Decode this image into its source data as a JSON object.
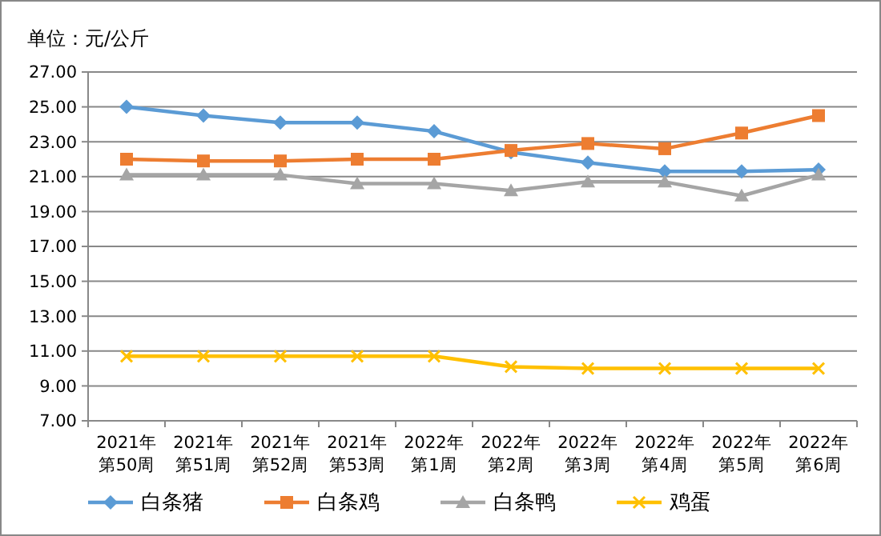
{
  "chart_data": {
    "type": "line",
    "title": "单位：元/公斤",
    "categories": [
      "2021年第50周",
      "2021年第51周",
      "2021年第52周",
      "2021年第53周",
      "2022年第1周",
      "2022年第2周",
      "2022年第3周",
      "2022年第4周",
      "2022年第5周",
      "2022年第6周"
    ],
    "series": [
      {
        "name": "白条猪",
        "color": "#5b9bd5",
        "marker": "diamond",
        "values": [
          25.0,
          24.5,
          24.1,
          24.1,
          23.6,
          22.4,
          21.8,
          21.3,
          21.3,
          21.4
        ]
      },
      {
        "name": "白条鸡",
        "color": "#ed7d31",
        "marker": "square",
        "values": [
          22.0,
          21.9,
          21.9,
          22.0,
          22.0,
          22.5,
          22.9,
          22.6,
          23.5,
          24.5
        ]
      },
      {
        "name": "白条鸭",
        "color": "#a5a5a5",
        "marker": "triangle",
        "values": [
          21.1,
          21.1,
          21.1,
          20.6,
          20.6,
          20.2,
          20.7,
          20.7,
          19.9,
          21.1
        ]
      },
      {
        "name": "鸡蛋",
        "color": "#ffc000",
        "marker": "cross",
        "values": [
          10.7,
          10.7,
          10.7,
          10.7,
          10.7,
          10.1,
          10.0,
          10.0,
          10.0,
          10.0
        ]
      }
    ],
    "ylim": [
      7,
      27
    ],
    "yticks": [
      {
        "value": 7,
        "label": "7.00"
      },
      {
        "value": 9,
        "label": "9.00"
      },
      {
        "value": 11,
        "label": "11.00"
      },
      {
        "value": 13,
        "label": "13.00"
      },
      {
        "value": 15,
        "label": "15.00"
      },
      {
        "value": 17,
        "label": "17.00"
      },
      {
        "value": 19,
        "label": "19.00"
      },
      {
        "value": 21,
        "label": "21.00"
      },
      {
        "value": 23,
        "label": "23.00"
      },
      {
        "value": 25,
        "label": "25.00"
      },
      {
        "value": 27,
        "label": "27.00"
      }
    ],
    "grid": "y",
    "legend": "bottom"
  }
}
